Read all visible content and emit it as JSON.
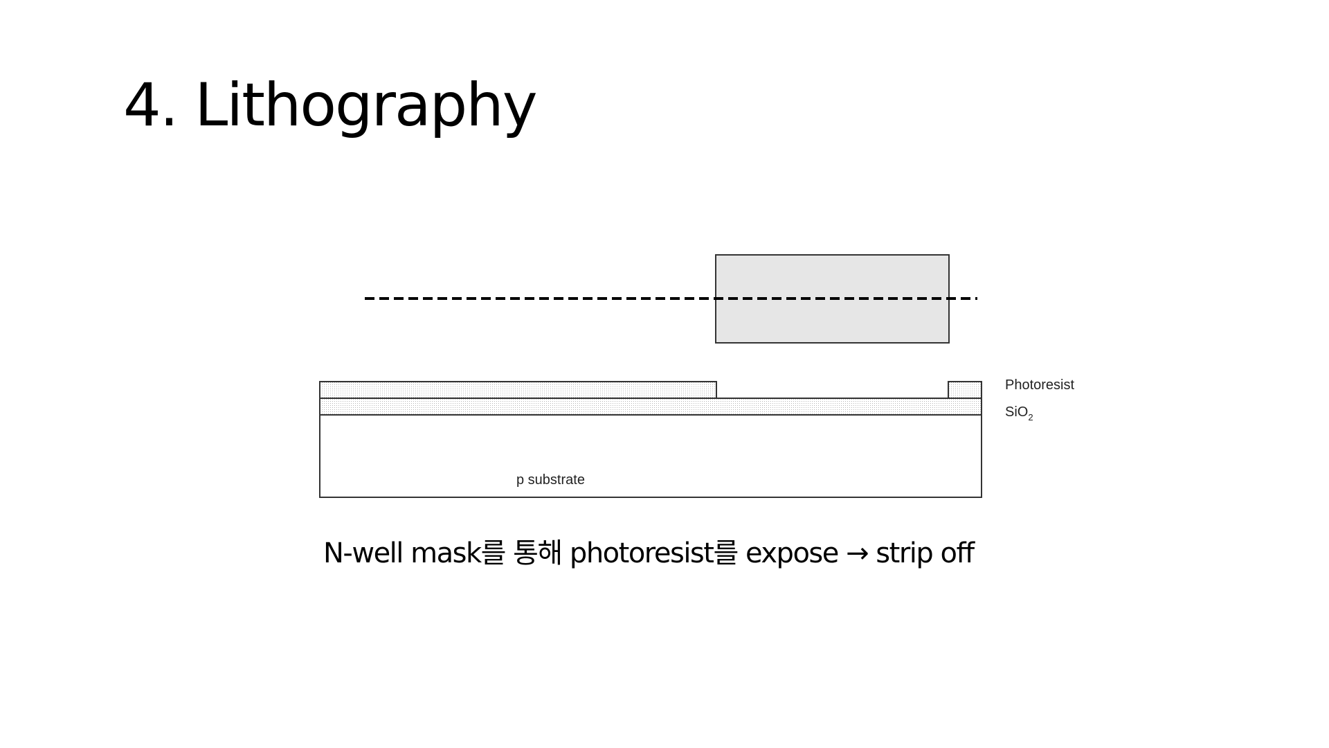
{
  "slide": {
    "title": "4. Lithography",
    "caption": "N-well mask를 통해 photoresist를 expose → strip off"
  },
  "diagram": {
    "labels": {
      "photoresist": "Photoresist",
      "oxide_base": "SiO",
      "oxide_subscript": "2",
      "substrate": "p substrate"
    },
    "colors": {
      "mask_fill": "#e6e6e6",
      "outline": "#333333",
      "layer_dots": "#b5b5b5"
    }
  }
}
